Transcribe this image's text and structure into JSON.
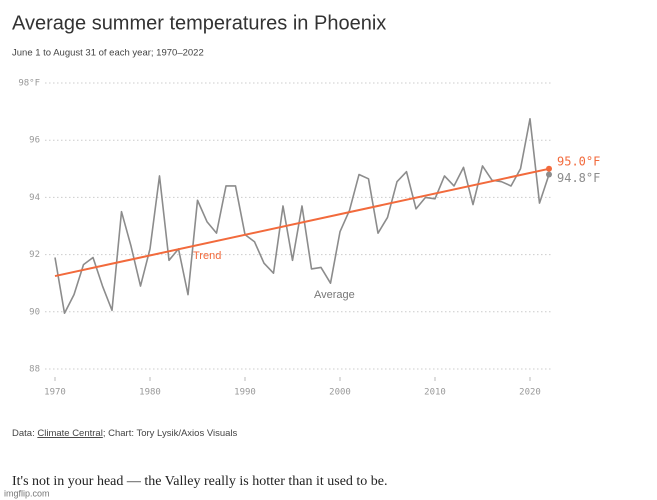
{
  "chart_data": {
    "type": "line",
    "title": "Average summer temperatures in Phoenix",
    "subtitle": "June 1 to August 31 of each year; 1970–2022",
    "source_prefix": "Data:",
    "source_link": "Climate Central",
    "source_suffix": "; Chart: Tory Lysik/Axios Visuals",
    "caption": "It's not in your head — the Valley really is hotter than it used to be.",
    "watermark": "imgflip.com",
    "x": [
      1970,
      1971,
      1972,
      1973,
      1974,
      1975,
      1976,
      1977,
      1978,
      1979,
      1980,
      1981,
      1982,
      1983,
      1984,
      1985,
      1986,
      1987,
      1988,
      1989,
      1990,
      1991,
      1992,
      1993,
      1994,
      1995,
      1996,
      1997,
      1998,
      1999,
      2000,
      2001,
      2002,
      2003,
      2004,
      2005,
      2006,
      2007,
      2008,
      2009,
      2010,
      2011,
      2012,
      2013,
      2014,
      2015,
      2016,
      2017,
      2018,
      2019,
      2020,
      2021,
      2022
    ],
    "series": [
      {
        "name": "Average",
        "color": "#8c8c8c",
        "values": [
          91.9,
          89.95,
          90.6,
          91.65,
          91.9,
          90.9,
          90.05,
          93.5,
          92.3,
          90.9,
          92.2,
          94.75,
          91.8,
          92.2,
          90.6,
          93.9,
          93.15,
          92.75,
          94.4,
          94.4,
          92.7,
          92.45,
          91.7,
          91.35,
          93.7,
          91.8,
          93.7,
          91.5,
          91.55,
          91.0,
          92.8,
          93.55,
          94.8,
          94.65,
          92.75,
          93.3,
          94.55,
          94.9,
          93.6,
          94.0,
          93.95,
          94.75,
          94.4,
          95.05,
          93.75,
          95.1,
          94.6,
          94.55,
          94.4,
          95.0,
          96.75,
          93.8,
          94.8
        ],
        "value_labels": [
          null,
          null,
          null,
          null,
          null,
          null,
          null,
          null,
          null,
          null,
          null,
          null,
          null,
          null,
          null,
          null,
          null,
          null,
          null,
          null,
          null,
          null,
          null,
          null,
          null,
          null,
          null,
          null,
          null,
          null,
          null,
          null,
          null,
          null,
          null,
          null,
          null,
          null,
          null,
          null,
          null,
          null,
          null,
          null,
          null,
          null,
          null,
          null,
          null,
          null,
          null,
          null,
          "94.8°F"
        ]
      },
      {
        "name": "Trend",
        "color": "#f26a3c",
        "x": [
          1970,
          2022
        ],
        "values": [
          91.25,
          95.0
        ],
        "value_labels": [
          null,
          "95.0°F"
        ]
      }
    ],
    "xlim": [
      1969,
      2023
    ],
    "xticks": [
      1970,
      1980,
      1990,
      2000,
      2010,
      2020
    ],
    "ylim": [
      88,
      98
    ],
    "yticks": [
      88,
      90,
      92,
      94,
      96,
      {
        "value": 98,
        "label": "98°F"
      }
    ],
    "grid": true
  }
}
